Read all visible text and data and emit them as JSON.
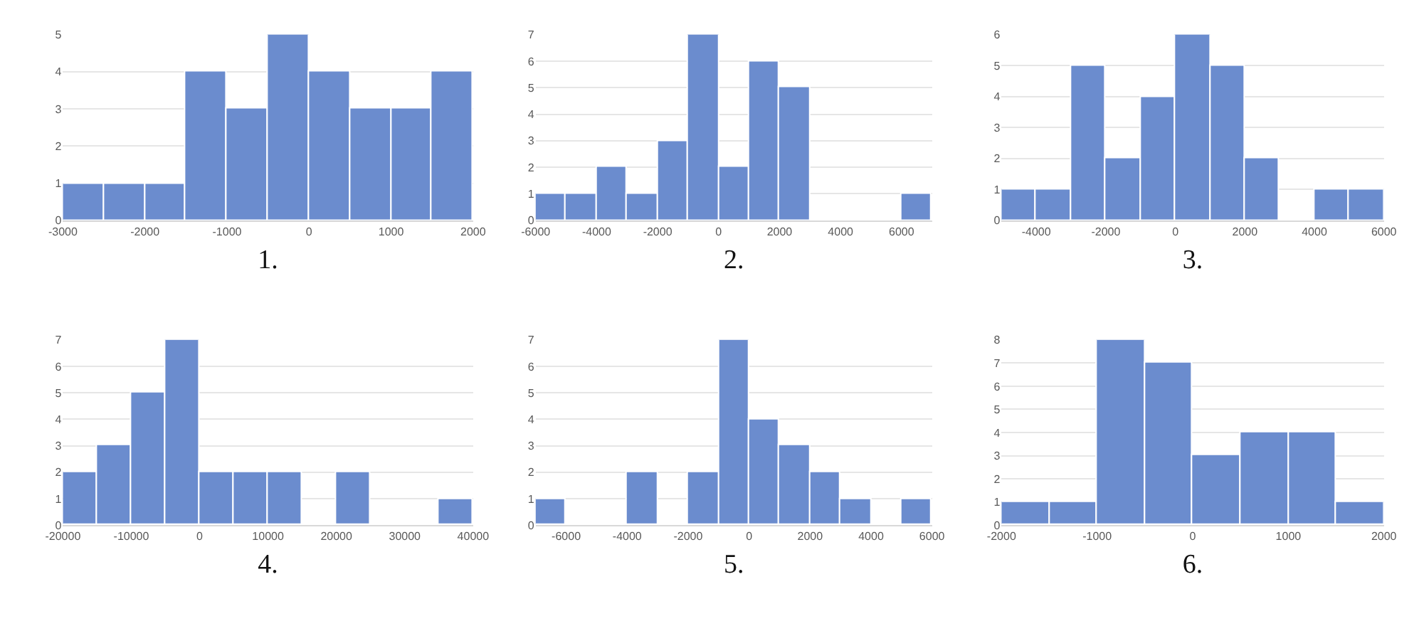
{
  "chart_data": [
    {
      "type": "histogram",
      "xlabel": "1.",
      "bins": [
        -3000,
        -2500,
        -2000,
        -1500,
        -1000,
        -500,
        0,
        500,
        1000,
        1500,
        2000
      ],
      "values": [
        1,
        1,
        1,
        4,
        3,
        5,
        4,
        3,
        3,
        4
      ],
      "color": "#6b8cce",
      "xlim": [
        -3000,
        2000
      ],
      "xticks": [
        -3000,
        -2000,
        -1000,
        0,
        1000,
        2000
      ],
      "ylim": [
        0,
        5
      ],
      "yticks": [
        0,
        1,
        2,
        3,
        4,
        5
      ],
      "grid": "y"
    },
    {
      "type": "histogram",
      "xlabel": "2.",
      "bins": [
        -6000,
        -5000,
        -4000,
        -3000,
        -2000,
        -1000,
        0,
        1000,
        2000,
        3000,
        4000,
        5000,
        6000,
        7000
      ],
      "values": [
        1,
        1,
        2,
        1,
        3,
        7,
        2,
        6,
        5,
        0,
        0,
        0,
        1
      ],
      "color": "#6b8cce",
      "xlim": [
        -6000,
        7000
      ],
      "xticks": [
        -6000,
        -4000,
        -2000,
        0,
        2000,
        4000,
        6000
      ],
      "ylim": [
        0,
        7
      ],
      "yticks": [
        0,
        1,
        2,
        3,
        4,
        5,
        6,
        7
      ],
      "grid": "y"
    },
    {
      "type": "histogram",
      "xlabel": "3.",
      "bins": [
        -5000,
        -4000,
        -3000,
        -2000,
        -1000,
        0,
        1000,
        2000,
        3000,
        4000,
        5000,
        6000
      ],
      "values": [
        1,
        1,
        5,
        2,
        4,
        6,
        5,
        2,
        0,
        1,
        1
      ],
      "color": "#6b8cce",
      "xlim": [
        -5000,
        6000
      ],
      "xticks": [
        -4000,
        -2000,
        0,
        2000,
        4000,
        6000
      ],
      "ylim": [
        0,
        6
      ],
      "yticks": [
        0,
        1,
        2,
        3,
        4,
        5,
        6
      ],
      "grid": "y"
    },
    {
      "type": "histogram",
      "xlabel": "4.",
      "bins": [
        -20000,
        -15000,
        -10000,
        -5000,
        0,
        5000,
        10000,
        15000,
        20000,
        25000,
        30000,
        35000,
        40000
      ],
      "values": [
        2,
        3,
        5,
        7,
        2,
        2,
        2,
        0,
        2,
        0,
        0,
        1
      ],
      "color": "#6b8cce",
      "xlim": [
        -20000,
        40000
      ],
      "xticks": [
        -20000,
        -10000,
        0,
        10000,
        20000,
        30000,
        40000
      ],
      "ylim": [
        0,
        7
      ],
      "yticks": [
        0,
        1,
        2,
        3,
        4,
        5,
        6,
        7
      ],
      "grid": "y"
    },
    {
      "type": "histogram",
      "xlabel": "5.",
      "bins": [
        -7000,
        -6000,
        -5000,
        -4000,
        -3000,
        -2000,
        -1000,
        0,
        1000,
        2000,
        3000,
        4000,
        5000,
        6000
      ],
      "values": [
        1,
        0,
        0,
        2,
        0,
        2,
        7,
        4,
        3,
        2,
        1,
        0,
        1
      ],
      "color": "#6b8cce",
      "xlim": [
        -7000,
        6000
      ],
      "xticks": [
        -6000,
        -4000,
        -2000,
        0,
        2000,
        4000,
        6000
      ],
      "ylim": [
        0,
        7
      ],
      "yticks": [
        0,
        1,
        2,
        3,
        4,
        5,
        6,
        7
      ],
      "grid": "y"
    },
    {
      "type": "histogram",
      "xlabel": "6.",
      "bins": [
        -2000,
        -1500,
        -1000,
        -500,
        0,
        500,
        1000,
        1500,
        2000
      ],
      "values": [
        1,
        1,
        8,
        7,
        3,
        4,
        4,
        1
      ],
      "color": "#6b8cce",
      "xlim": [
        -2000,
        2000
      ],
      "xticks": [
        -2000,
        -1000,
        0,
        1000,
        2000
      ],
      "ylim": [
        0,
        8
      ],
      "yticks": [
        0,
        1,
        2,
        3,
        4,
        5,
        6,
        7,
        8
      ],
      "grid": "y"
    }
  ]
}
